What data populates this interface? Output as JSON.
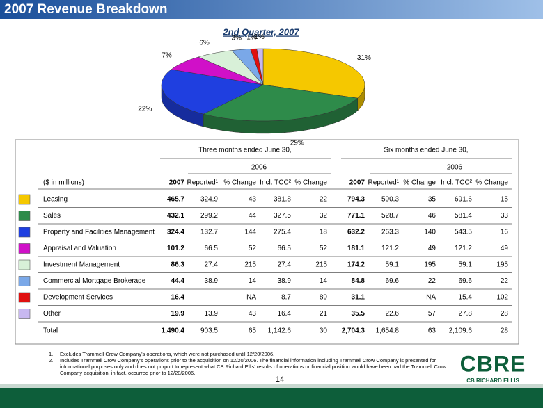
{
  "header": {
    "title": "2007 Revenue Breakdown"
  },
  "chart_data": {
    "type": "pie",
    "title": "2nd Quarter, 2007",
    "values": [
      31,
      29,
      22,
      7,
      6,
      3,
      1,
      1
    ],
    "value_labels": [
      "31%",
      "29%",
      "22%",
      "7%",
      "6%",
      "3%",
      "1%",
      "1%"
    ],
    "colors": [
      "#f5c800",
      "#2e8b4a",
      "#1f3fe0",
      "#d010c8",
      "#d8f0d8",
      "#7aa8e8",
      "#e01010",
      "#c8b8f0"
    ]
  },
  "table": {
    "group_headers": [
      "Three months ended June 30,",
      "Six months ended June 30,"
    ],
    "sub_headers": [
      "2006",
      "2006"
    ],
    "columns": [
      "($ in millions)",
      "2007",
      "Reported¹",
      "% Change",
      "Incl. TCC²",
      "% Change",
      "2007",
      "Reported¹",
      "% Change",
      "Incl. TCC²",
      "% Change"
    ],
    "rows": [
      [
        "Leasing",
        "465.7",
        "324.9",
        "43",
        "381.8",
        "22",
        "794.3",
        "590.3",
        "35",
        "691.6",
        "15"
      ],
      [
        "Sales",
        "432.1",
        "299.2",
        "44",
        "327.5",
        "32",
        "771.1",
        "528.7",
        "46",
        "581.4",
        "33"
      ],
      [
        "Property and Facilities Management",
        "324.4",
        "132.7",
        "144",
        "275.4",
        "18",
        "632.2",
        "263.3",
        "140",
        "543.5",
        "16"
      ],
      [
        "Appraisal and Valuation",
        "101.2",
        "66.5",
        "52",
        "66.5",
        "52",
        "181.1",
        "121.2",
        "49",
        "121.2",
        "49"
      ],
      [
        "Investment Management",
        "86.3",
        "27.4",
        "215",
        "27.4",
        "215",
        "174.2",
        "59.1",
        "195",
        "59.1",
        "195"
      ],
      [
        "Commercial Mortgage Brokerage",
        "44.4",
        "38.9",
        "14",
        "38.9",
        "14",
        "84.8",
        "69.6",
        "22",
        "69.6",
        "22"
      ],
      [
        "Development Services",
        "16.4",
        "-",
        "NA",
        "8.7",
        "89",
        "31.1",
        "-",
        "NA",
        "15.4",
        "102"
      ],
      [
        "Other",
        "19.9",
        "13.9",
        "43",
        "16.4",
        "21",
        "35.5",
        "22.6",
        "57",
        "27.8",
        "28"
      ]
    ],
    "total": [
      "Total",
      "1,490.4",
      "903.5",
      "65",
      "1,142.6",
      "30",
      "2,704.3",
      "1,654.8",
      "63",
      "2,109.6",
      "28"
    ]
  },
  "footnotes": [
    [
      "1.",
      "Excludes Trammell Crow Company's operations, which were not purchased until 12/20/2006."
    ],
    [
      "2.",
      "Includes Trammell Crow Company's operations prior to the acquisition on 12/20/2006.  The financial information including Trammell Crow Company is presented for",
      "informational purposes only and does not purport to represent what CB Richard Ellis' results of operations or financial position would have been had the Trammell Crow",
      "Company acquisition, in fact, occurred prior to 12/20/2006."
    ]
  ],
  "page_number": "14",
  "logo": {
    "mark": "CBRE",
    "name": "CB RICHARD ELLIS"
  }
}
